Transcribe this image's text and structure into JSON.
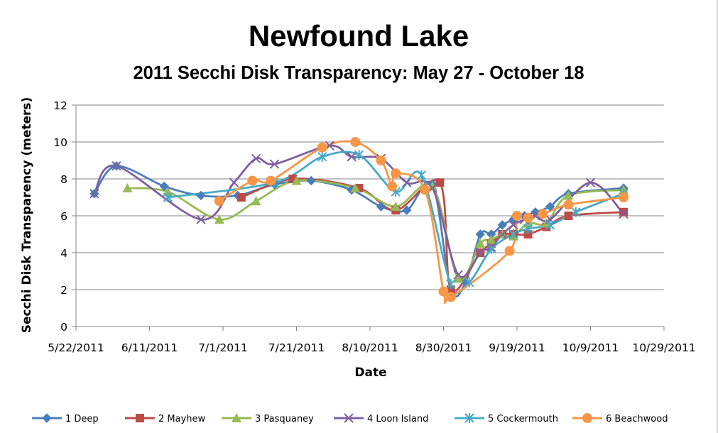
{
  "chart_data": {
    "type": "line",
    "title": "Newfound Lake",
    "subtitle": "2011 Secchi Disk Transparency: May 27 - October 18",
    "xlabel": "Date",
    "ylabel": "Secchi Disk Transparency (meters)",
    "xlim": [
      "2011-05-22",
      "2011-10-29"
    ],
    "ylim": [
      0,
      12
    ],
    "xticks": [
      "5/22/2011",
      "6/11/2011",
      "7/1/2011",
      "7/21/2011",
      "8/10/2011",
      "8/30/2011",
      "9/19/2011",
      "10/9/2011",
      "10/29/2011"
    ],
    "yticks": [
      "0",
      "2",
      "4",
      "6",
      "8",
      "10",
      "12"
    ],
    "grid": "horizontal",
    "legend_position": "bottom",
    "series": [
      {
        "name": "1 Deep",
        "color": "#4a7ebb",
        "marker": "diamond",
        "x": [
          "2011-05-27",
          "2011-06-02",
          "2011-06-15",
          "2011-06-25",
          "2011-07-05",
          "2011-07-15",
          "2011-07-25",
          "2011-08-05",
          "2011-08-13",
          "2011-08-20",
          "2011-08-27",
          "2011-09-01",
          "2011-09-05",
          "2011-09-09",
          "2011-09-12",
          "2011-09-15",
          "2011-09-18",
          "2011-09-21",
          "2011-09-24",
          "2011-09-28",
          "2011-10-03",
          "2011-10-18"
        ],
        "y": [
          7.2,
          8.7,
          7.6,
          7.1,
          7.1,
          7.7,
          7.9,
          7.4,
          6.5,
          6.3,
          7.7,
          2.0,
          2.4,
          5.0,
          5.0,
          5.5,
          5.8,
          6.0,
          6.2,
          6.5,
          7.2,
          7.5
        ]
      },
      {
        "name": "2 Mayhew",
        "color": "#be4b48",
        "marker": "square",
        "x": [
          "2011-07-06",
          "2011-07-20",
          "2011-08-07",
          "2011-08-17",
          "2011-08-29",
          "2011-09-01",
          "2011-09-09",
          "2011-09-12",
          "2011-09-15",
          "2011-09-18",
          "2011-09-22",
          "2011-09-27",
          "2011-10-03",
          "2011-10-18"
        ],
        "y": [
          7.0,
          8.0,
          7.5,
          6.3,
          7.8,
          2.0,
          4.0,
          4.5,
          5.0,
          5.0,
          5.0,
          5.4,
          6.0,
          6.2
        ]
      },
      {
        "name": "3 Pasquaney",
        "color": "#98b954",
        "marker": "triangle",
        "x": [
          "2011-06-05",
          "2011-06-16",
          "2011-06-30",
          "2011-07-10",
          "2011-07-21",
          "2011-08-06",
          "2011-08-17",
          "2011-08-27",
          "2011-09-03",
          "2011-09-09",
          "2011-09-12",
          "2011-09-15",
          "2011-09-18",
          "2011-09-22",
          "2011-09-27",
          "2011-10-03",
          "2011-10-18"
        ],
        "y": [
          7.5,
          7.3,
          5.8,
          6.8,
          7.9,
          7.5,
          6.5,
          7.6,
          2.6,
          4.5,
          4.7,
          5.0,
          4.9,
          5.6,
          5.6,
          7.1,
          7.4
        ]
      },
      {
        "name": "4 Loon Island",
        "color": "#7d60a0",
        "marker": "x",
        "x": [
          "2011-05-27",
          "2011-06-02",
          "2011-06-25",
          "2011-07-04",
          "2011-07-10",
          "2011-07-15",
          "2011-07-30",
          "2011-08-05",
          "2011-08-13",
          "2011-08-20",
          "2011-08-27",
          "2011-09-03",
          "2011-09-09",
          "2011-09-12",
          "2011-09-15",
          "2011-09-18",
          "2011-09-21",
          "2011-09-24",
          "2011-09-28",
          "2011-10-09",
          "2011-10-18"
        ],
        "y": [
          7.2,
          8.7,
          5.8,
          7.8,
          9.1,
          8.8,
          9.8,
          9.2,
          9.1,
          7.8,
          7.5,
          2.8,
          4.0,
          4.3,
          5.0,
          5.5,
          5.8,
          6.0,
          5.8,
          7.8,
          6.1
        ]
      },
      {
        "name": "5 Cockermouth",
        "color": "#46aac5",
        "marker": "asterisk",
        "x": [
          "2011-06-16",
          "2011-07-15",
          "2011-07-28",
          "2011-08-07",
          "2011-08-17",
          "2011-08-24",
          "2011-09-01",
          "2011-09-06",
          "2011-09-12",
          "2011-09-18",
          "2011-09-22",
          "2011-09-28",
          "2011-10-05",
          "2011-10-18"
        ],
        "y": [
          7.0,
          7.8,
          9.2,
          9.3,
          7.3,
          8.2,
          2.3,
          2.4,
          4.2,
          5.0,
          5.3,
          5.5,
          6.2,
          7.2
        ]
      },
      {
        "name": "6 Beachwood",
        "color": "#f79646",
        "marker": "circle",
        "x": [
          "2011-06-30",
          "2011-07-09",
          "2011-07-14",
          "2011-07-28",
          "2011-08-06",
          "2011-08-13",
          "2011-08-16",
          "2011-08-17",
          "2011-08-25",
          "2011-08-30",
          "2011-09-01",
          "2011-09-17",
          "2011-09-19",
          "2011-09-22",
          "2011-09-26",
          "2011-10-03",
          "2011-10-18"
        ],
        "y": [
          6.8,
          7.9,
          7.9,
          9.7,
          10.0,
          9.0,
          7.6,
          8.3,
          7.4,
          1.9,
          1.6,
          4.1,
          6.0,
          5.9,
          6.1,
          6.6,
          7.0
        ]
      }
    ]
  }
}
